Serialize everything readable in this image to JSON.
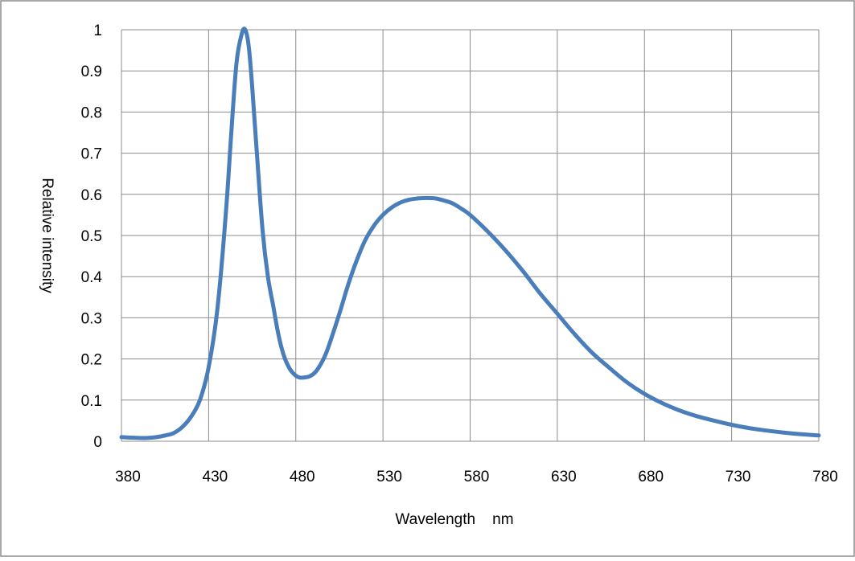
{
  "chart_data": {
    "type": "line",
    "title": "",
    "xlabel": "Wavelength    nm",
    "ylabel": "Relative intensity",
    "xlim": [
      380,
      780
    ],
    "ylim": [
      0,
      1
    ],
    "x_ticks": [
      380,
      430,
      480,
      530,
      580,
      630,
      680,
      730,
      780
    ],
    "y_ticks": [
      0,
      0.1,
      0.2,
      0.3,
      0.4,
      0.5,
      0.6,
      0.7,
      0.8,
      0.9,
      1
    ],
    "y_tick_labels": [
      "0",
      "0.1",
      "0.2",
      "0.3",
      "0.4",
      "0.5",
      "0.6",
      "0.7",
      "0.8",
      "0.9",
      "1"
    ],
    "grid": true,
    "legend": "none",
    "series": [
      {
        "color": "#4a7ebb",
        "x": [
          380,
          390,
          395,
          400,
          405,
          410,
          415,
          420,
          425,
          430,
          435,
          440,
          443,
          446,
          449,
          451,
          453,
          455,
          458,
          461,
          464,
          467,
          470,
          473,
          476,
          479,
          482,
          485,
          488,
          491,
          494,
          497,
          500,
          505,
          510,
          515,
          520,
          525,
          530,
          535,
          540,
          545,
          550,
          555,
          560,
          565,
          570,
          575,
          580,
          590,
          600,
          610,
          620,
          630,
          640,
          650,
          660,
          670,
          680,
          690,
          700,
          710,
          720,
          730,
          740,
          750,
          760,
          770,
          780
        ],
        "y": [
          0.01,
          0.008,
          0.008,
          0.01,
          0.014,
          0.02,
          0.035,
          0.06,
          0.1,
          0.18,
          0.32,
          0.56,
          0.75,
          0.92,
          0.99,
          1.0,
          0.96,
          0.86,
          0.68,
          0.51,
          0.4,
          0.33,
          0.26,
          0.21,
          0.18,
          0.163,
          0.155,
          0.155,
          0.158,
          0.167,
          0.185,
          0.21,
          0.245,
          0.31,
          0.38,
          0.44,
          0.49,
          0.525,
          0.55,
          0.568,
          0.58,
          0.587,
          0.59,
          0.591,
          0.59,
          0.585,
          0.578,
          0.565,
          0.55,
          0.51,
          0.465,
          0.415,
          0.36,
          0.31,
          0.26,
          0.215,
          0.178,
          0.143,
          0.115,
          0.093,
          0.075,
          0.061,
          0.05,
          0.04,
          0.032,
          0.026,
          0.021,
          0.017,
          0.014
        ]
      }
    ]
  }
}
